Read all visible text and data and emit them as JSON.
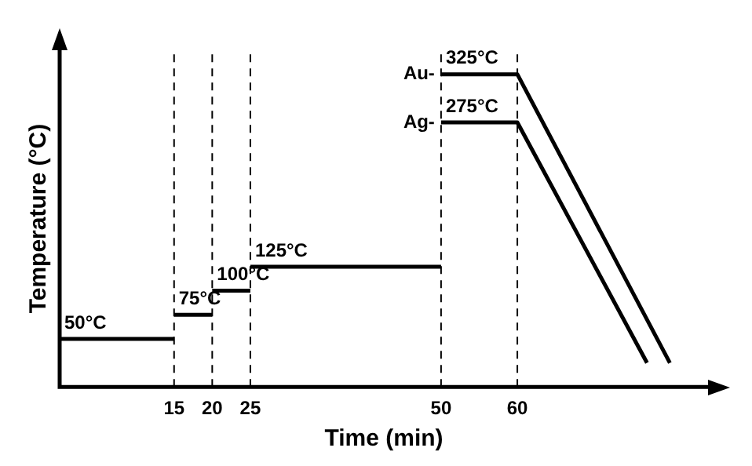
{
  "chart_data": {
    "type": "line",
    "xlabel": "Time (min)",
    "ylabel": "Temperature (°C)",
    "xlim": [
      0,
      85
    ],
    "xticks": [
      15,
      20,
      25,
      50,
      60
    ],
    "ylim": [
      0,
      350
    ],
    "tick_labels": "x",
    "grid": false,
    "legend": false,
    "marker": "none",
    "line_style": "solid",
    "series": [
      {
        "color": "#000000",
        "x": [
          0,
          15
        ],
        "values": [
          50,
          50
        ],
        "value_labels": [
          "50°C",
          null
        ]
      },
      {
        "color": "#000000",
        "x": [
          15,
          20
        ],
        "values": [
          75,
          75
        ],
        "value_labels": [
          "75°C",
          null
        ]
      },
      {
        "color": "#000000",
        "x": [
          20,
          25
        ],
        "values": [
          100,
          100
        ],
        "value_labels": [
          "100°C",
          null
        ]
      },
      {
        "color": "#000000",
        "x": [
          25,
          50
        ],
        "values": [
          125,
          125
        ],
        "value_labels": [
          "125°C",
          null
        ]
      },
      {
        "name": "Au-",
        "color": "#000000",
        "x": [
          50,
          60,
          80
        ],
        "values": [
          325,
          325,
          25
        ],
        "value_labels": [
          "325°C",
          null,
          null
        ]
      },
      {
        "name": "Ag-",
        "color": "#000000",
        "x": [
          50,
          60,
          77
        ],
        "values": [
          275,
          275,
          25
        ],
        "value_labels": [
          "275°C",
          null,
          null
        ]
      }
    ],
    "ref_lines": [
      {
        "axis": "x",
        "value": 15,
        "line_style": "dashed"
      },
      {
        "axis": "x",
        "value": 20,
        "line_style": "dashed"
      },
      {
        "axis": "x",
        "value": 25,
        "line_style": "dashed"
      },
      {
        "axis": "x",
        "value": 50,
        "line_style": "dashed"
      },
      {
        "axis": "x",
        "value": 60,
        "line_style": "dashed"
      }
    ]
  }
}
